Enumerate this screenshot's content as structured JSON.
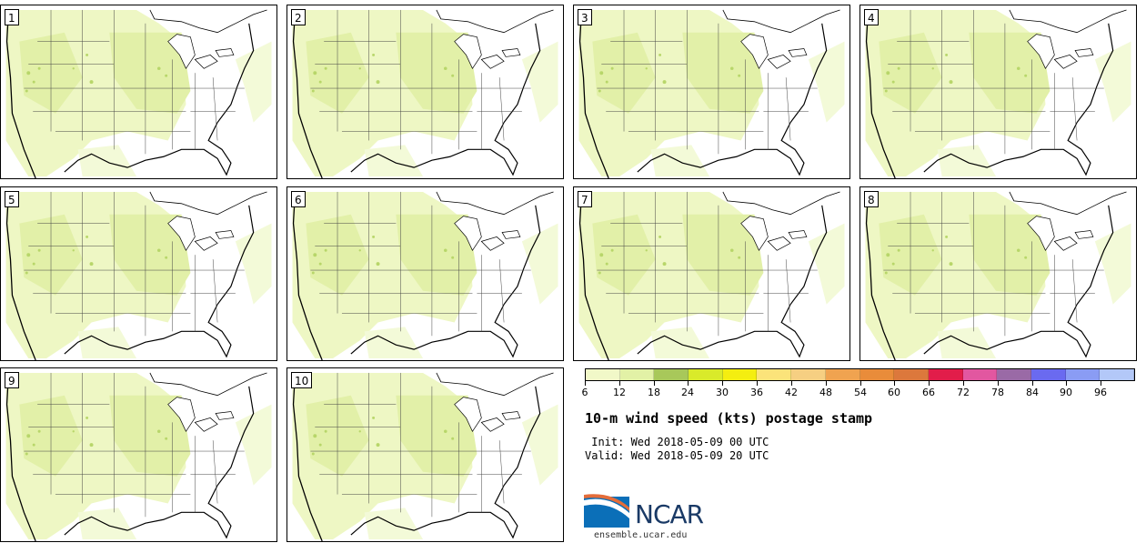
{
  "panels": [
    {
      "label": "1"
    },
    {
      "label": "2"
    },
    {
      "label": "3"
    },
    {
      "label": "4"
    },
    {
      "label": "5"
    },
    {
      "label": "6"
    },
    {
      "label": "7"
    },
    {
      "label": "8"
    },
    {
      "label": "9"
    },
    {
      "label": "10"
    }
  ],
  "colorbar": {
    "ticks": [
      "6",
      "12",
      "18",
      "24",
      "30",
      "36",
      "42",
      "48",
      "54",
      "60",
      "66",
      "72",
      "78",
      "84",
      "90",
      "96"
    ],
    "colors": [
      "#f1f8c8",
      "#e2f1a6",
      "#a8c85a",
      "#d9ea2a",
      "#f4ee10",
      "#fbe37a",
      "#f6cf82",
      "#f0a350",
      "#e98c3a",
      "#dc783c",
      "#e21d4a",
      "#e257a0",
      "#9a6aa6",
      "#6a6af0",
      "#8a9cf4",
      "#b3c8f8"
    ]
  },
  "title": "10-m wind speed (kts) postage stamp",
  "init": " Init: Wed 2018-05-09 00 UTC",
  "valid": "Valid: Wed 2018-05-09 20 UTC",
  "logo": {
    "text": "NCAR",
    "url": "ensemble.ucar.edu"
  },
  "map_colors": {
    "light": "#eef7c4",
    "medium": "#e2f0a8",
    "dark": "#b8d66a",
    "border": "#000000"
  }
}
